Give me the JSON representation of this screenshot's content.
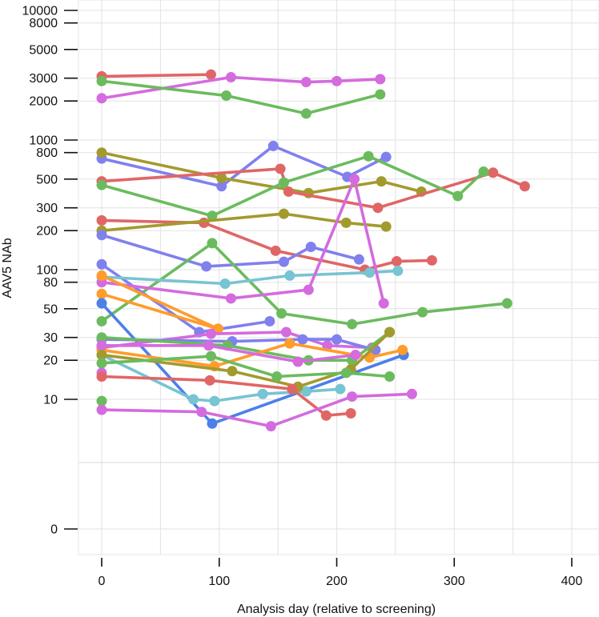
{
  "chart_data": {
    "type": "line",
    "title": "",
    "xlabel": "Analysis day (relative to screening)",
    "ylabel": "AAV5 NAb",
    "xlim": [
      -20,
      420
    ],
    "ylim": [
      0,
      15000
    ],
    "y_scale": "log",
    "grid": true,
    "legend": "none",
    "x_ticks": [
      "0",
      "100",
      "200",
      "300",
      "400"
    ],
    "y_ticks": [
      "10000",
      "8000",
      "5000",
      "3000",
      "2000",
      "1000",
      "800",
      "500",
      "300",
      "200",
      "100",
      "80",
      "50",
      "30",
      "20",
      "10",
      "0"
    ],
    "series": [
      {
        "color": "#E06666",
        "x": [
          0,
          93
        ],
        "y": [
          3100,
          3200
        ]
      },
      {
        "color": "#D46BDE",
        "x": [
          0,
          110,
          174,
          200,
          237
        ],
        "y": [
          2100,
          3050,
          2800,
          2850,
          2950
        ]
      },
      {
        "color": "#6BBB5E",
        "x": [
          0,
          106,
          174,
          237
        ],
        "y": [
          2850,
          2200,
          1600,
          2250
        ]
      },
      {
        "color": "#8080EE",
        "x": [
          0,
          102,
          146,
          209,
          242
        ],
        "y": [
          720,
          440,
          900,
          520,
          740
        ]
      },
      {
        "color": "#A39A2E",
        "x": [
          0,
          102,
          176,
          238,
          272
        ],
        "y": [
          800,
          510,
          390,
          480,
          400
        ]
      },
      {
        "color": "#E06666",
        "x": [
          0,
          152,
          159,
          235,
          333,
          360
        ],
        "y": [
          480,
          600,
          400,
          300,
          560,
          440
        ]
      },
      {
        "color": "#6BBB5E",
        "x": [
          0,
          94,
          155,
          227,
          303,
          325
        ],
        "y": [
          450,
          260,
          470,
          750,
          370,
          570
        ]
      },
      {
        "color": "#E06666",
        "x": [
          0,
          87,
          148,
          224,
          251,
          281
        ],
        "y": [
          240,
          230,
          140,
          100,
          116,
          118
        ]
      },
      {
        "color": "#A39A2E",
        "x": [
          0,
          155,
          208,
          242
        ],
        "y": [
          200,
          270,
          230,
          215
        ]
      },
      {
        "color": "#8080EE",
        "x": [
          0,
          89,
          155,
          178,
          219
        ],
        "y": [
          185,
          106,
          115,
          150,
          120
        ]
      },
      {
        "color": "#6BBB5E",
        "x": [
          0,
          94,
          153,
          213,
          273,
          345
        ],
        "y": [
          40,
          160,
          46,
          38,
          47,
          55
        ]
      },
      {
        "color": "#8080EE",
        "x": [
          0,
          83,
          143
        ],
        "y": [
          110,
          33,
          40
        ]
      },
      {
        "color": "#77C4D3",
        "x": [
          0,
          105,
          160,
          228,
          252
        ],
        "y": [
          88,
          78,
          90,
          95,
          98
        ]
      },
      {
        "color": "#D46BDE",
        "x": [
          0,
          110,
          176,
          215,
          240
        ],
        "y": [
          80,
          60,
          70,
          500,
          55
        ]
      },
      {
        "color": "#FF9C2A",
        "x": [
          0,
          99
        ],
        "y": [
          90,
          35
        ]
      },
      {
        "color": "#FF9C2A",
        "x": [
          0,
          99
        ],
        "y": [
          65,
          35
        ]
      },
      {
        "color": "#4D7FE8",
        "x": [
          0,
          94,
          257
        ],
        "y": [
          55,
          6.5,
          22
        ]
      },
      {
        "color": "#D46BDE",
        "x": [
          0,
          93,
          157,
          192,
          230
        ],
        "y": [
          25,
          32,
          33,
          26,
          25
        ]
      },
      {
        "color": "#8080EE",
        "x": [
          0,
          111,
          171,
          200,
          233
        ],
        "y": [
          29,
          28,
          29,
          29,
          24
        ]
      },
      {
        "color": "#6BBB5E",
        "x": [
          0,
          107,
          176,
          213,
          245
        ],
        "y": [
          30,
          26,
          20,
          20,
          33
        ]
      },
      {
        "color": "#FF9C2A",
        "x": [
          0,
          96,
          160,
          228,
          256
        ],
        "y": [
          24,
          18,
          27,
          21,
          24
        ]
      },
      {
        "color": "#D46BDE",
        "x": [
          0,
          91,
          167,
          216
        ],
        "y": [
          26,
          26,
          19.5,
          22
        ]
      },
      {
        "color": "#77C4D3",
        "x": [
          0,
          78,
          96,
          137,
          174,
          203
        ],
        "y": [
          22,
          10,
          9.7,
          11,
          11.5,
          12
        ]
      },
      {
        "color": "#A39A2E",
        "x": [
          0,
          111,
          167,
          212,
          245
        ],
        "y": [
          22,
          16.5,
          12.5,
          17,
          33
        ]
      },
      {
        "color": "#6BBB5E",
        "x": [
          0,
          93,
          149,
          208,
          245
        ],
        "y": [
          19,
          21.5,
          15,
          16,
          15
        ]
      },
      {
        "color": "#D46BDE",
        "x": [
          0
        ],
        "y": [
          16
        ]
      },
      {
        "color": "#E06666",
        "x": [
          0,
          92,
          162,
          191,
          212
        ],
        "y": [
          15,
          14,
          12,
          7.5,
          7.8
        ]
      },
      {
        "color": "#6BBB5E",
        "x": [
          0
        ],
        "y": [
          9.7
        ]
      },
      {
        "color": "#D46BDE",
        "x": [
          0,
          85,
          144,
          213,
          264
        ],
        "y": [
          8.3,
          8,
          6.2,
          10.5,
          11
        ]
      }
    ]
  }
}
